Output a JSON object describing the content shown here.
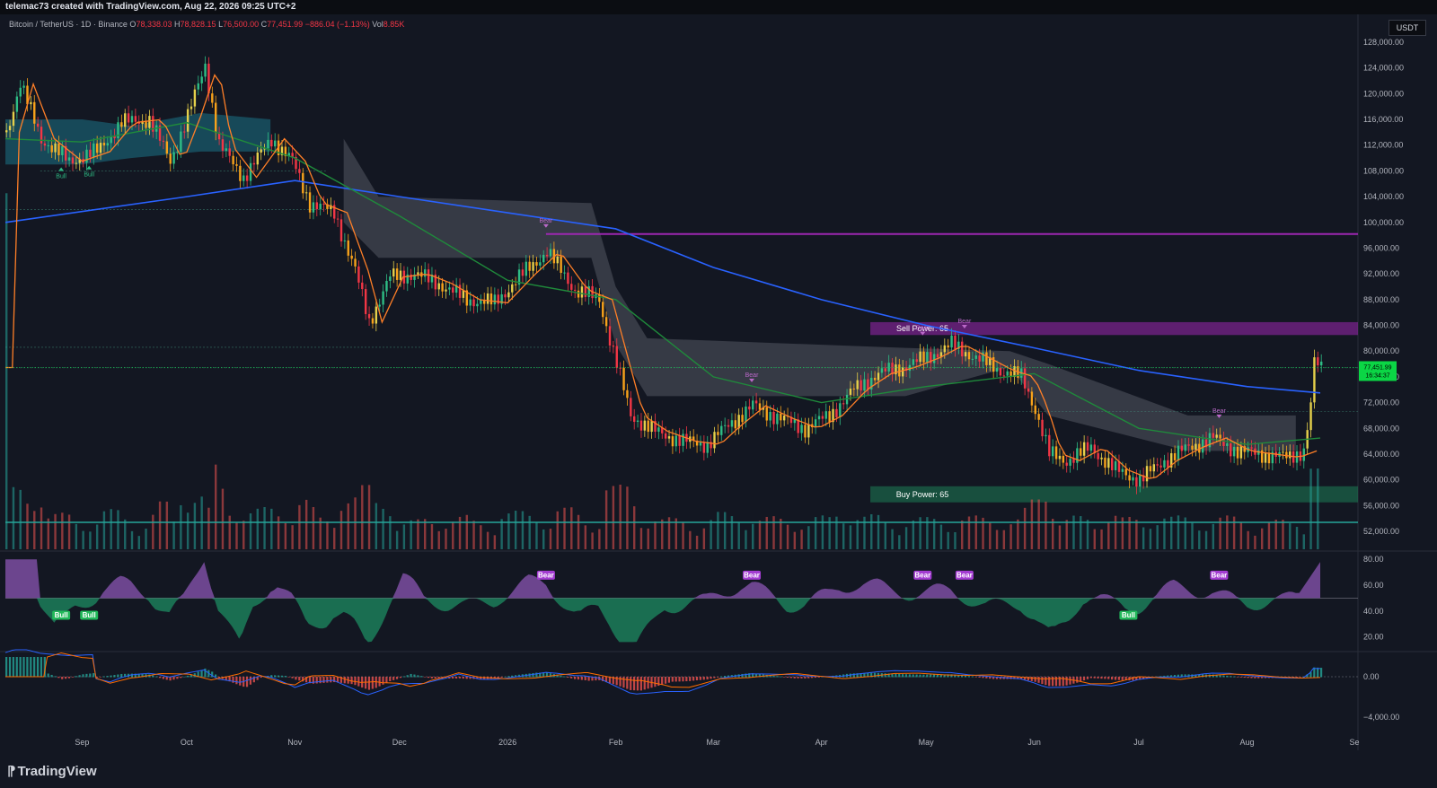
{
  "header": {
    "attribution": "telemac73 created with TradingView.com, Aug 22, 2026 09:25 UTC+2"
  },
  "legend": {
    "symbol": "Bitcoin / TetherUS · 1D · Binance",
    "open_label": "O",
    "open": "78,338.03",
    "high_label": "H",
    "high": "78,828.15",
    "low_label": "L",
    "low": "76,500.00",
    "close_label": "C",
    "close": "77,451.99",
    "change": "−886.04 (−1.13%)",
    "vol_label": "Vol",
    "vol": "8.85K"
  },
  "currency_badge": "USDT",
  "footer": {
    "brand": "TradingView"
  },
  "colors": {
    "up": "#2ebd85",
    "down": "#f23645",
    "bg": "#131722",
    "accent": "#9c27b0",
    "ma200": "#2962ff",
    "ma50": "#1f8a3b"
  },
  "chart_data": [
    {
      "type": "candlestick",
      "panel": "price",
      "symbol": "BTCUSDT",
      "timeframe": "1D",
      "y_ticks": [
        "128,000.00",
        "124,000.00",
        "120,000.00",
        "116,000.00",
        "112,000.00",
        "108,000.00",
        "104,000.00",
        "100,000.00",
        "96,000.00",
        "92,000.00",
        "88,000.00",
        "84,000.00",
        "80,000.00",
        "76,000.00",
        "72,000.00",
        "68,000.00",
        "64,000.00",
        "60,000.00",
        "56,000.00",
        "52,000.00"
      ],
      "ylim": [
        50000,
        130000
      ],
      "last_price": "77,451.99",
      "countdown": "16:34:37",
      "time_ticks": [
        "Sep",
        "Oct",
        "Nov",
        "Dec",
        "2026",
        "Feb",
        "Mar",
        "Apr",
        "May",
        "Jun",
        "Jul",
        "Aug",
        "Se"
      ],
      "approx_close_path": [
        [
          "2025-08-10",
          114000
        ],
        [
          "2025-08-14",
          121500
        ],
        [
          "2025-08-20",
          113000
        ],
        [
          "2025-08-28",
          109500
        ],
        [
          "2025-09-05",
          111000
        ],
        [
          "2025-09-12",
          115500
        ],
        [
          "2025-09-20",
          116000
        ],
        [
          "2025-09-26",
          109500
        ],
        [
          "2025-10-01",
          116500
        ],
        [
          "2025-10-06",
          124500
        ],
        [
          "2025-10-10",
          112000
        ],
        [
          "2025-10-17",
          107000
        ],
        [
          "2025-10-25",
          113000
        ],
        [
          "2025-10-31",
          109500
        ],
        [
          "2025-11-05",
          103000
        ],
        [
          "2025-11-12",
          101500
        ],
        [
          "2025-11-18",
          92500
        ],
        [
          "2025-11-22",
          84500
        ],
        [
          "2025-11-28",
          91500
        ],
        [
          "2025-12-05",
          92000
        ],
        [
          "2025-12-12",
          90500
        ],
        [
          "2025-12-20",
          88000
        ],
        [
          "2025-12-28",
          87500
        ],
        [
          "2026-01-05",
          92000
        ],
        [
          "2026-01-12",
          95500
        ],
        [
          "2026-01-20",
          89500
        ],
        [
          "2026-01-27",
          88000
        ],
        [
          "2026-02-01",
          78000
        ],
        [
          "2026-02-05",
          70000
        ],
        [
          "2026-02-12",
          67500
        ],
        [
          "2026-02-20",
          66000
        ],
        [
          "2026-02-27",
          65500
        ],
        [
          "2026-03-05",
          68500
        ],
        [
          "2026-03-12",
          71500
        ],
        [
          "2026-03-20",
          69500
        ],
        [
          "2026-03-27",
          68000
        ],
        [
          "2026-04-03",
          70000
        ],
        [
          "2026-04-10",
          74000
        ],
        [
          "2026-04-17",
          76500
        ],
        [
          "2026-04-24",
          77500
        ],
        [
          "2026-05-01",
          79000
        ],
        [
          "2026-05-08",
          81000
        ],
        [
          "2026-05-15",
          79000
        ],
        [
          "2026-05-22",
          77000
        ],
        [
          "2026-05-28",
          76000
        ],
        [
          "2026-06-01",
          71000
        ],
        [
          "2026-06-05",
          64000
        ],
        [
          "2026-06-10",
          63000
        ],
        [
          "2026-06-17",
          65000
        ],
        [
          "2026-06-24",
          61500
        ],
        [
          "2026-07-01",
          60000
        ],
        [
          "2026-07-08",
          63000
        ],
        [
          "2026-07-15",
          65000
        ],
        [
          "2026-07-22",
          66500
        ],
        [
          "2026-07-29",
          64500
        ],
        [
          "2026-08-05",
          64000
        ],
        [
          "2026-08-12",
          63500
        ],
        [
          "2026-08-17",
          64500
        ],
        [
          "2026-08-19",
          71500
        ],
        [
          "2026-08-20",
          78200
        ],
        [
          "2026-08-22",
          77452
        ]
      ],
      "sma200_path": [
        [
          "2025-08-10",
          100000
        ],
        [
          "2025-10-01",
          104000
        ],
        [
          "2025-11-01",
          106500
        ],
        [
          "2025-12-01",
          104000
        ],
        [
          "2026-01-01",
          101500
        ],
        [
          "2026-02-01",
          99000
        ],
        [
          "2026-03-01",
          93000
        ],
        [
          "2026-04-01",
          88000
        ],
        [
          "2026-05-01",
          84000
        ],
        [
          "2026-06-01",
          80500
        ],
        [
          "2026-07-01",
          77000
        ],
        [
          "2026-08-01",
          74500
        ],
        [
          "2026-08-22",
          73500
        ]
      ],
      "sma50_path": [
        [
          "2025-08-10",
          113000
        ],
        [
          "2025-09-01",
          112500
        ],
        [
          "2025-10-01",
          115500
        ],
        [
          "2025-11-01",
          110000
        ],
        [
          "2025-12-01",
          101000
        ],
        [
          "2026-01-01",
          91000
        ],
        [
          "2026-02-01",
          88000
        ],
        [
          "2026-03-01",
          76000
        ],
        [
          "2026-04-01",
          72000
        ],
        [
          "2026-05-01",
          74500
        ],
        [
          "2026-06-01",
          76500
        ],
        [
          "2026-07-01",
          68000
        ],
        [
          "2026-08-01",
          65500
        ],
        [
          "2026-08-22",
          66500
        ]
      ],
      "zones": [
        {
          "label": "Sell Power: 65",
          "from": 82500,
          "to": 84500
        },
        {
          "label": "Buy Power: 65",
          "from": 56500,
          "to": 59000
        }
      ],
      "resistance_line": 98200,
      "signals": [
        {
          "label": "Bull",
          "date": "2025-08-26"
        },
        {
          "label": "Bull",
          "date": "2025-09-03"
        },
        {
          "label": "Bear",
          "date": "2026-01-12"
        },
        {
          "label": "Bear",
          "date": "2026-03-12"
        },
        {
          "label": "Bear",
          "date": "2026-04-30"
        },
        {
          "label": "Bear",
          "date": "2026-05-12"
        },
        {
          "label": "Bear",
          "date": "2026-07-24"
        }
      ]
    },
    {
      "type": "area",
      "panel": "oscillator",
      "y_ticks": [
        "80.00",
        "60.00",
        "40.00",
        "20.00"
      ],
      "ylim": [
        10,
        85
      ],
      "midline": 50,
      "signals": [
        {
          "label": "Bull",
          "date": "2025-08-26"
        },
        {
          "label": "Bull",
          "date": "2025-09-03"
        },
        {
          "label": "Bear",
          "date": "2026-01-12"
        },
        {
          "label": "Bear",
          "date": "2026-03-12"
        },
        {
          "label": "Bear",
          "date": "2026-04-30"
        },
        {
          "label": "Bear",
          "date": "2026-05-12"
        },
        {
          "label": "Bull",
          "date": "2026-06-28"
        },
        {
          "label": "Bear",
          "date": "2026-07-24"
        }
      ]
    },
    {
      "type": "histogram",
      "panel": "macd",
      "y_ticks": [
        "0.00",
        "−4,000.00"
      ],
      "zero_line": 0
    }
  ]
}
